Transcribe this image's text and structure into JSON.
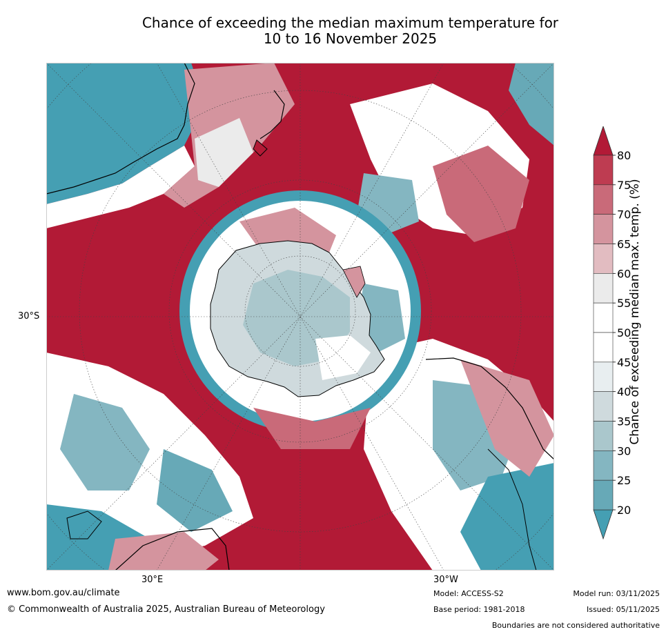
{
  "title": {
    "line1": "Chance of exceeding the median maximum temperature for",
    "line2": "10 to 16 November 2025"
  },
  "map": {
    "projection": "south-polar-stereographic",
    "lat_labels": [
      "30°S"
    ],
    "lon_labels": [
      "30°E",
      "30°W"
    ],
    "colors": {
      "c80plus": "#b21a36",
      "c75": "#be3c51",
      "c70": "#c96a79",
      "c65": "#d4949e",
      "c60": "#e2bcc1",
      "c55": "#ebebeb",
      "c50": "#ffffff",
      "c45": "#e8eef0",
      "c40": "#cfdadd",
      "c35": "#aac7cc",
      "c30": "#84b6c1",
      "c25": "#67a9b7",
      "c20minus": "#459fb3",
      "coast": "#000000"
    }
  },
  "colorbar": {
    "label": "Chance of exceeding median max. temp. (%)",
    "ticks": [
      "80",
      "75",
      "70",
      "65",
      "60",
      "55",
      "50",
      "45",
      "40",
      "35",
      "30",
      "25",
      "20"
    ],
    "bins": [
      "#be3c51",
      "#c96a79",
      "#d4949e",
      "#e2bcc1",
      "#ebebeb",
      "#ffffff",
      "#ffffff",
      "#e8eef0",
      "#cfdadd",
      "#aac7cc",
      "#84b6c1",
      "#67a9b7"
    ],
    "top_arrow_color": "#b21a36",
    "bottom_arrow_color": "#459fb3",
    "extends": "both"
  },
  "footer": {
    "website": "www.bom.gov.au/climate",
    "copyright": "© Commonwealth of Australia 2025, Australian Bureau of Meteorology",
    "model": "Model: ACCESS-S2",
    "base_period": "Base period: 1981-2018",
    "model_run": "Model run: 03/11/2025",
    "issued": "Issued: 05/11/2025",
    "disclaimer": "Boundaries are not considered authoritative"
  }
}
